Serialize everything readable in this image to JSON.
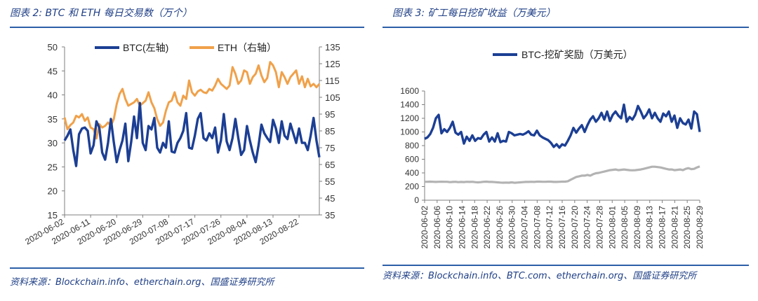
{
  "left": {
    "figure_title": "图表 2: BTC 和 ETH 每日交易数（万个）",
    "source": "资料来源：Blockchain.info、etherchain.org、国盛证券研究所"
  },
  "right": {
    "figure_title": "图表 3: 矿工每日挖矿收益（万美元）",
    "source": "资料来源：Blockchain.info、BTC.com、etherchain.org、国盛证券研究所"
  },
  "colors": {
    "btc": "#1c3f94",
    "eth": "#f0a14a",
    "gray": "#b3b3b3",
    "rule": "#2c5fa8"
  },
  "chart_data": [
    {
      "type": "line",
      "x_start": "2020-06-02",
      "x_end": "2020-08-30",
      "x_tick_labels": [
        "2020-06-02",
        "2020-06-11",
        "2020-06-20",
        "2020-06-29",
        "2020-07-08",
        "2020-07-17",
        "2020-07-26",
        "2020-08-04",
        "2020-08-13",
        "2020-08-22"
      ],
      "yleft_ticks": [
        "15",
        "20",
        "25",
        "30",
        "35",
        "40",
        "45",
        "50"
      ],
      "yleft_lim": [
        15,
        50
      ],
      "yright_ticks": [
        "35",
        "45",
        "55",
        "65",
        "75",
        "85",
        "95",
        "105",
        "115",
        "125",
        "135"
      ],
      "yright_lim": [
        35,
        135
      ],
      "legend": [
        "BTC(左轴)",
        "ETH（右轴）"
      ],
      "legend_placement": "top",
      "series": [
        {
          "name": "BTC(左轴)",
          "axis": "left",
          "values": [
            30.5,
            31.5,
            32.8,
            28.5,
            25.2,
            31.8,
            33.0,
            33.2,
            32.5,
            27.8,
            29.5,
            34.5,
            33.2,
            28.0,
            26.5,
            30.0,
            35.0,
            30.2,
            26.0,
            28.5,
            30.5,
            34.0,
            26.2,
            30.2,
            35.5,
            31.0,
            38.3,
            30.0,
            28.5,
            33.5,
            32.8,
            35.2,
            29.0,
            28.0,
            30.0,
            29.0,
            34.5,
            28.2,
            28.0,
            30.0,
            31.0,
            32.5,
            36.2,
            29.0,
            28.8,
            31.5,
            35.0,
            36.2,
            31.0,
            30.5,
            32.0,
            31.0,
            33.2,
            28.0,
            30.5,
            36.0,
            30.3,
            28.5,
            31.0,
            35.0,
            31.0,
            27.5,
            28.5,
            33.5,
            30.5,
            28.0,
            26.0,
            29.5,
            33.8,
            32.0,
            31.0,
            30.2,
            34.8,
            33.0,
            30.0,
            34.5,
            31.5,
            30.8,
            34.0,
            32.0,
            30.0,
            33.0,
            30.0,
            30.0,
            28.5,
            31.5,
            35.2,
            30.5,
            27.0
          ]
        },
        {
          "name": "ETH（右轴）",
          "axis": "right",
          "values": [
            93.0,
            86.0,
            88.5,
            90.0,
            94.0,
            93.0,
            95.0,
            91.0,
            93.0,
            87.0,
            86.0,
            80.5,
            89.0,
            87.0,
            88.0,
            90.0,
            88.0,
            92.0,
            101.0,
            107.0,
            110.0,
            104.0,
            100.0,
            101.0,
            102.0,
            104.0,
            100.0,
            101.5,
            103.0,
            108.0,
            102.0,
            98.5,
            92.0,
            88.0,
            90.0,
            97.0,
            102.0,
            103.0,
            108.0,
            102.0,
            100.0,
            106.0,
            104.0,
            115.0,
            108.0,
            106.0,
            108.5,
            109.5,
            108.0,
            107.5,
            110.0,
            109.0,
            112.0,
            116.0,
            113.0,
            111.5,
            110.0,
            112.0,
            123.0,
            119.0,
            113.0,
            115.0,
            121.0,
            120.0,
            113.0,
            117.0,
            119.0,
            124.0,
            118.0,
            114.0,
            116.5,
            126.0,
            124.0,
            120.0,
            111.0,
            120.0,
            117.0,
            113.0,
            117.0,
            119.0,
            121.0,
            113.0,
            117.5,
            111.0,
            116.0,
            111.5,
            113.0,
            111.0,
            113.0
          ]
        }
      ]
    },
    {
      "type": "line",
      "x_tick_labels": [
        "2020-06-02",
        "2020-06-06",
        "2020-06-10",
        "2020-06-14",
        "2020-06-18",
        "2020-06-22",
        "2020-06-26",
        "2020-06-30",
        "2020-07-04",
        "2020-07-08",
        "2020-07-12",
        "2020-07-16",
        "2020-07-20",
        "2020-07-24",
        "2020-07-28",
        "2020-08-01",
        "2020-08-05",
        "2020-08-09",
        "2020-08-13",
        "2020-08-17",
        "2020-08-21",
        "2020-08-25",
        "2020-08-29"
      ],
      "y_ticks": [
        "0",
        "200",
        "400",
        "600",
        "800",
        "1000",
        "1200",
        "1400",
        "1600"
      ],
      "ylim": [
        0,
        1600
      ],
      "legend": [
        "BTC-挖矿奖励（万美元）"
      ],
      "legend_placement": "top",
      "series": [
        {
          "name": "BTC-挖矿奖励（万美元）",
          "color": "btc",
          "values": [
            900,
            920,
            970,
            1060,
            1200,
            1250,
            980,
            1040,
            1000,
            1060,
            1150,
            990,
            960,
            1000,
            830,
            930,
            870,
            950,
            870,
            910,
            900,
            960,
            1000,
            860,
            920,
            860,
            980,
            850,
            870,
            860,
            1000,
            980,
            950,
            960,
            970,
            960,
            980,
            1010,
            960,
            950,
            1020,
            950,
            920,
            900,
            880,
            840,
            780,
            820,
            770,
            820,
            800,
            870,
            950,
            1060,
            990,
            1050,
            1100,
            1000,
            1100,
            1180,
            1230,
            1150,
            1200,
            1280,
            1180,
            1300,
            1160,
            1250,
            1300,
            1240,
            1200,
            1400,
            1150,
            1220,
            1180,
            1250,
            1380,
            1300,
            1200,
            1250,
            1330,
            1200,
            1280,
            1200,
            1150,
            1270,
            1230,
            1300,
            1150,
            1240,
            1060,
            1200,
            1130,
            1110,
            1180,
            1050,
            1300,
            1260,
            1000
          ]
        },
        {
          "name": "",
          "color": "gray",
          "values": [
            270,
            270,
            272,
            270,
            268,
            270,
            271,
            270,
            270,
            265,
            268,
            270,
            265,
            268,
            266,
            270,
            268,
            270,
            265,
            262,
            265,
            270,
            272,
            268,
            268,
            265,
            262,
            258,
            256,
            258,
            256,
            262,
            255,
            258,
            262,
            265,
            268,
            268,
            270,
            268,
            272,
            272,
            270,
            270,
            272,
            272,
            268,
            268,
            270,
            272,
            272,
            278,
            300,
            320,
            340,
            350,
            360,
            360,
            370,
            360,
            380,
            395,
            400,
            410,
            420,
            430,
            440,
            445,
            450,
            440,
            445,
            450,
            445,
            440,
            438,
            440,
            445,
            450,
            460,
            470,
            480,
            490,
            490,
            485,
            480,
            470,
            460,
            450,
            450,
            440,
            445,
            450,
            440,
            460,
            470,
            455,
            460,
            480,
            495
          ]
        }
      ]
    }
  ]
}
